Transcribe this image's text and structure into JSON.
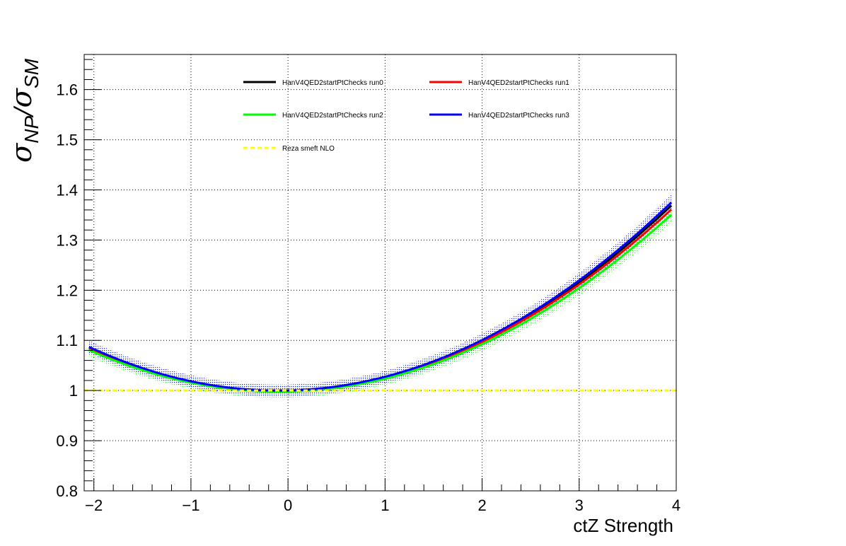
{
  "chart_data": {
    "type": "line",
    "title": "",
    "xlabel": "ctZ Strength",
    "ylabel": {
      "base": "σ",
      "num_sub": "NP",
      "sep": "/",
      "den_sub": "SM"
    },
    "xlim": [
      -2.1,
      4.0
    ],
    "ylim": [
      0.8,
      1.67
    ],
    "grid": true,
    "legend_position": "top",
    "x_ticks": [
      -2,
      -1,
      0,
      1,
      2,
      3,
      4
    ],
    "x_tick_labels": [
      "−2",
      "−1",
      "0",
      "1",
      "2",
      "3",
      "4"
    ],
    "y_ticks": [
      0.8,
      0.9,
      1.0,
      1.1,
      1.2,
      1.3,
      1.4,
      1.5,
      1.6
    ],
    "y_tick_labels": [
      "0.8",
      "0.9",
      "1",
      "1.1",
      "1.2",
      "1.3",
      "1.4",
      "1.5",
      "1.6"
    ],
    "series": [
      {
        "name": "HanV4QED2startPtChecks run0",
        "color": "#000000",
        "style": "solid",
        "a": 0.0,
        "b": 0.0045,
        "c": 0.0225,
        "err": 0.0
      },
      {
        "name": "HanV4QED2startPtChecks run1",
        "color": "#ff0000",
        "style": "solid",
        "a": 0.0,
        "b": 0.0045,
        "c": 0.022,
        "err": 0.008
      },
      {
        "name": "HanV4QED2startPtChecks run2",
        "color": "#00ff00",
        "style": "solid",
        "a": -0.002,
        "b": 0.004,
        "c": 0.0216,
        "err": 0.012
      },
      {
        "name": "HanV4QED2startPtChecks run3",
        "color": "#0000ff",
        "style": "solid",
        "a": 0.0,
        "b": 0.0045,
        "c": 0.0229,
        "err": 0.012
      },
      {
        "name": "Reza smeft NLO",
        "color": "#ffff00",
        "style": "dashed",
        "a": 0.0,
        "b": 0.0,
        "c": 0.0,
        "err": 0.0
      }
    ]
  }
}
